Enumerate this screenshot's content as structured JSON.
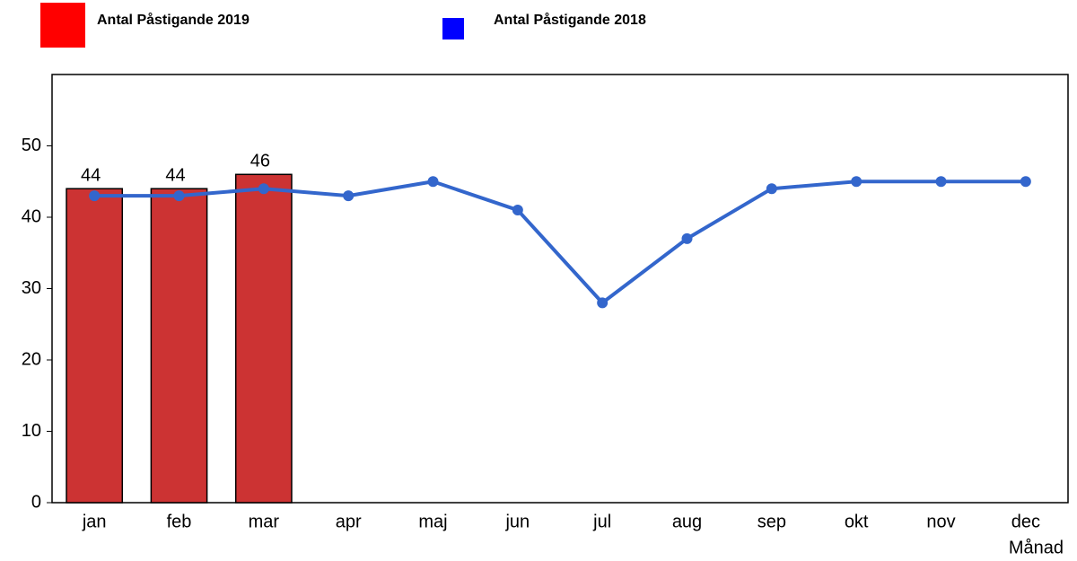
{
  "chart_data": {
    "type": "bar-line",
    "x_label": "Månad",
    "categories": [
      "jan",
      "feb",
      "mar",
      "apr",
      "maj",
      "jun",
      "jul",
      "aug",
      "sep",
      "okt",
      "nov",
      "dec"
    ],
    "series": [
      {
        "name": "Antal Påstigande 2019",
        "type": "bar",
        "color": "#cc3333",
        "legend_color": "#ff0000",
        "values": [
          44,
          44,
          46,
          null,
          null,
          null,
          null,
          null,
          null,
          null,
          null,
          null
        ]
      },
      {
        "name": "Antal Påstigande 2018",
        "type": "line",
        "color": "#3366cc",
        "legend_color": "#0000ff",
        "values": [
          43,
          43,
          44,
          43,
          45,
          41,
          28,
          37,
          44,
          45,
          45,
          45
        ]
      }
    ],
    "ylim": [
      0,
      60
    ],
    "yticks": [
      0,
      10,
      20,
      30,
      40,
      50
    ]
  }
}
